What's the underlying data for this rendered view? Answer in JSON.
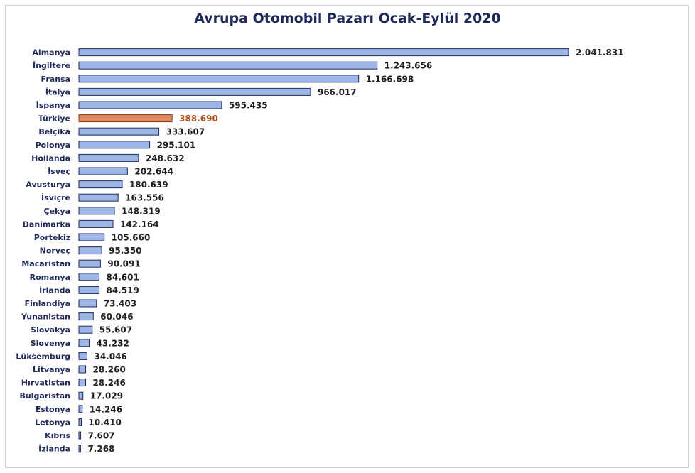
{
  "chart_data": {
    "type": "bar",
    "orientation": "horizontal",
    "title": "Avrupa Otomobil Pazarı Ocak-Eylül 2020",
    "xlabel": "",
    "ylabel": "",
    "grid": false,
    "legend": "none",
    "colors": {
      "bar_fill": "#9db6e6",
      "bar_stroke": "#1f2a5a",
      "highlight_fill": "#e3895c",
      "highlight_stroke": "#8a3a18",
      "highlight_label": "#b4501f",
      "title": "#1f2a5a"
    },
    "highlight_category": "Türkiye",
    "categories": [
      "Almanya",
      "İngiltere",
      "Fransa",
      "İtalya",
      "İspanya",
      "Türkiye",
      "Belçika",
      "Polonya",
      "Hollanda",
      "İsveç",
      "Avusturya",
      "İsviçre",
      "Çekya",
      "Danimarka",
      "Portekiz",
      "Norveç",
      "Macaristan",
      "Romanya",
      "İrlanda",
      "Finlandiya",
      "Yunanistan",
      "Slovakya",
      "Slovenya",
      "Lüksemburg",
      "Litvanya",
      "Hırvatistan",
      "Bulgaristan",
      "Estonya",
      "Letonya",
      "Kıbrıs",
      "İzlanda"
    ],
    "values": [
      2041831,
      1243656,
      1166698,
      966017,
      595435,
      388690,
      333607,
      295101,
      248632,
      202644,
      180639,
      163556,
      148319,
      142164,
      105660,
      95350,
      90091,
      84601,
      84519,
      73403,
      60046,
      55607,
      43232,
      34046,
      28260,
      28246,
      17029,
      14246,
      10410,
      7607,
      7268
    ],
    "value_labels": [
      "2.041.831",
      "1.243.656",
      "1.166.698",
      "966.017",
      "595.435",
      "388.690",
      "333.607",
      "295.101",
      "248.632",
      "202.644",
      "180.639",
      "163.556",
      "148.319",
      "142.164",
      "105.660",
      "95.350",
      "90.091",
      "84.601",
      "84.519",
      "73.403",
      "60.046",
      "55.607",
      "43.232",
      "34.046",
      "28.260",
      "28.246",
      "17.029",
      "14.246",
      "10.410",
      "7.607",
      "7.268"
    ]
  }
}
